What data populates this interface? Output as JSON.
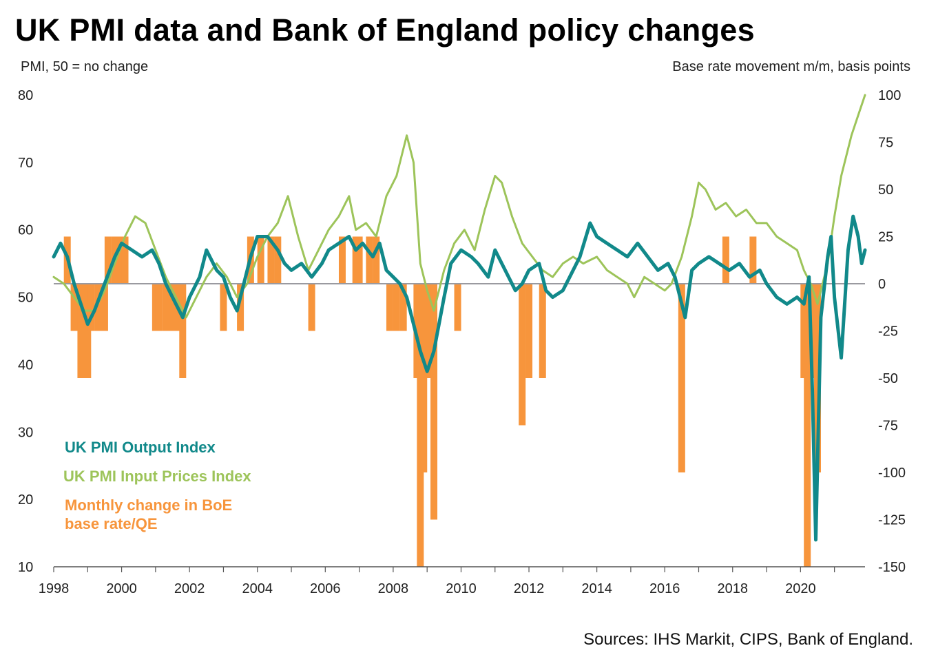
{
  "title": "UK PMI data and Bank of England policy changes",
  "source": "Sources: IHS Markit, CIPS, Bank of England.",
  "chart_data": {
    "type": "line",
    "title": "UK PMI data and Bank of England policy changes",
    "y_left_label": "PMI, 50 = no change",
    "y_right_label": "Base rate movement m/m, basis points",
    "y_left_range": [
      10,
      80
    ],
    "y_right_range": [
      -150,
      100
    ],
    "x_range": [
      1998,
      2021.9
    ],
    "y_left_ticks": [
      "80",
      "70",
      "60",
      "50",
      "40",
      "30",
      "20",
      "10"
    ],
    "y_right_ticks": [
      "100",
      "75",
      "50",
      "25",
      "0",
      "-25",
      "-50",
      "-75",
      "-100",
      "-125",
      "-150"
    ],
    "x_ticks": [
      "1998",
      "2000",
      "2002",
      "2004",
      "2006",
      "2008",
      "2010",
      "2012",
      "2014",
      "2016",
      "2018",
      "2020"
    ],
    "zero_line_right_axis": 0,
    "legend_placement": "bottom-left",
    "series": [
      {
        "name": "UK PMI Output Index",
        "axis": "left",
        "color": "#11898a",
        "points": [
          [
            1998.0,
            56
          ],
          [
            1998.2,
            58
          ],
          [
            1998.4,
            56
          ],
          [
            1998.6,
            52
          ],
          [
            1998.8,
            49
          ],
          [
            1999.0,
            46
          ],
          [
            1999.2,
            48
          ],
          [
            1999.5,
            52
          ],
          [
            1999.8,
            56
          ],
          [
            2000.0,
            58
          ],
          [
            2000.3,
            57
          ],
          [
            2000.6,
            56
          ],
          [
            2000.9,
            57
          ],
          [
            2001.1,
            55
          ],
          [
            2001.3,
            52
          ],
          [
            2001.6,
            49
          ],
          [
            2001.8,
            47
          ],
          [
            2002.0,
            50
          ],
          [
            2002.3,
            53
          ],
          [
            2002.5,
            57
          ],
          [
            2002.8,
            54
          ],
          [
            2003.0,
            53
          ],
          [
            2003.2,
            50
          ],
          [
            2003.4,
            48
          ],
          [
            2003.6,
            52
          ],
          [
            2003.8,
            56
          ],
          [
            2004.0,
            59
          ],
          [
            2004.3,
            59
          ],
          [
            2004.6,
            57
          ],
          [
            2004.8,
            55
          ],
          [
            2005.0,
            54
          ],
          [
            2005.3,
            55
          ],
          [
            2005.6,
            53
          ],
          [
            2005.9,
            55
          ],
          [
            2006.1,
            57
          ],
          [
            2006.4,
            58
          ],
          [
            2006.7,
            59
          ],
          [
            2006.9,
            57
          ],
          [
            2007.1,
            58
          ],
          [
            2007.4,
            56
          ],
          [
            2007.6,
            58
          ],
          [
            2007.8,
            54
          ],
          [
            2008.0,
            53
          ],
          [
            2008.2,
            52
          ],
          [
            2008.4,
            50
          ],
          [
            2008.6,
            46
          ],
          [
            2008.8,
            42
          ],
          [
            2009.0,
            39
          ],
          [
            2009.2,
            42
          ],
          [
            2009.5,
            50
          ],
          [
            2009.7,
            55
          ],
          [
            2010.0,
            57
          ],
          [
            2010.3,
            56
          ],
          [
            2010.5,
            55
          ],
          [
            2010.8,
            53
          ],
          [
            2011.0,
            57
          ],
          [
            2011.2,
            55
          ],
          [
            2011.4,
            53
          ],
          [
            2011.6,
            51
          ],
          [
            2011.8,
            52
          ],
          [
            2012.0,
            54
          ],
          [
            2012.3,
            55
          ],
          [
            2012.5,
            51
          ],
          [
            2012.7,
            50
          ],
          [
            2013.0,
            51
          ],
          [
            2013.2,
            53
          ],
          [
            2013.5,
            56
          ],
          [
            2013.8,
            61
          ],
          [
            2014.0,
            59
          ],
          [
            2014.3,
            58
          ],
          [
            2014.6,
            57
          ],
          [
            2014.9,
            56
          ],
          [
            2015.2,
            58
          ],
          [
            2015.5,
            56
          ],
          [
            2015.8,
            54
          ],
          [
            2016.1,
            55
          ],
          [
            2016.3,
            53
          ],
          [
            2016.6,
            47
          ],
          [
            2016.8,
            54
          ],
          [
            2017.0,
            55
          ],
          [
            2017.3,
            56
          ],
          [
            2017.6,
            55
          ],
          [
            2017.9,
            54
          ],
          [
            2018.2,
            55
          ],
          [
            2018.5,
            53
          ],
          [
            2018.8,
            54
          ],
          [
            2019.0,
            52
          ],
          [
            2019.3,
            50
          ],
          [
            2019.6,
            49
          ],
          [
            2019.9,
            50
          ],
          [
            2020.1,
            49
          ],
          [
            2020.25,
            53
          ],
          [
            2020.35,
            36
          ],
          [
            2020.45,
            14
          ],
          [
            2020.6,
            47
          ],
          [
            2020.8,
            56
          ],
          [
            2020.9,
            59
          ],
          [
            2021.0,
            50
          ],
          [
            2021.2,
            41
          ],
          [
            2021.4,
            57
          ],
          [
            2021.55,
            62
          ],
          [
            2021.7,
            59
          ],
          [
            2021.8,
            55
          ],
          [
            2021.9,
            57
          ]
        ]
      },
      {
        "name": "UK PMI Input Prices Index",
        "axis": "left",
        "color": "#9dc45a",
        "points": [
          [
            1998.0,
            53
          ],
          [
            1998.3,
            52
          ],
          [
            1998.6,
            50
          ],
          [
            1998.9,
            48
          ],
          [
            1999.2,
            48
          ],
          [
            1999.5,
            51
          ],
          [
            1999.8,
            55
          ],
          [
            2000.1,
            59
          ],
          [
            2000.4,
            62
          ],
          [
            2000.7,
            61
          ],
          [
            2001.0,
            57
          ],
          [
            2001.3,
            53
          ],
          [
            2001.6,
            50
          ],
          [
            2001.9,
            47
          ],
          [
            2002.2,
            50
          ],
          [
            2002.5,
            53
          ],
          [
            2002.8,
            55
          ],
          [
            2003.1,
            53
          ],
          [
            2003.4,
            50
          ],
          [
            2003.7,
            52
          ],
          [
            2004.0,
            56
          ],
          [
            2004.3,
            59
          ],
          [
            2004.6,
            61
          ],
          [
            2004.9,
            65
          ],
          [
            2005.2,
            59
          ],
          [
            2005.5,
            54
          ],
          [
            2005.8,
            57
          ],
          [
            2006.1,
            60
          ],
          [
            2006.4,
            62
          ],
          [
            2006.7,
            65
          ],
          [
            2006.9,
            60
          ],
          [
            2007.2,
            61
          ],
          [
            2007.5,
            59
          ],
          [
            2007.8,
            65
          ],
          [
            2008.1,
            68
          ],
          [
            2008.4,
            74
          ],
          [
            2008.6,
            70
          ],
          [
            2008.8,
            55
          ],
          [
            2009.0,
            51
          ],
          [
            2009.2,
            48
          ],
          [
            2009.5,
            54
          ],
          [
            2009.8,
            58
          ],
          [
            2010.1,
            60
          ],
          [
            2010.4,
            57
          ],
          [
            2010.7,
            63
          ],
          [
            2011.0,
            68
          ],
          [
            2011.2,
            67
          ],
          [
            2011.5,
            62
          ],
          [
            2011.8,
            58
          ],
          [
            2012.1,
            56
          ],
          [
            2012.4,
            54
          ],
          [
            2012.7,
            53
          ],
          [
            2013.0,
            55
          ],
          [
            2013.3,
            56
          ],
          [
            2013.6,
            55
          ],
          [
            2014.0,
            56
          ],
          [
            2014.3,
            54
          ],
          [
            2014.6,
            53
          ],
          [
            2014.9,
            52
          ],
          [
            2015.1,
            50
          ],
          [
            2015.4,
            53
          ],
          [
            2015.7,
            52
          ],
          [
            2016.0,
            51
          ],
          [
            2016.2,
            52
          ],
          [
            2016.5,
            56
          ],
          [
            2016.8,
            62
          ],
          [
            2017.0,
            67
          ],
          [
            2017.2,
            66
          ],
          [
            2017.5,
            63
          ],
          [
            2017.8,
            64
          ],
          [
            2018.1,
            62
          ],
          [
            2018.4,
            63
          ],
          [
            2018.7,
            61
          ],
          [
            2019.0,
            61
          ],
          [
            2019.3,
            59
          ],
          [
            2019.6,
            58
          ],
          [
            2019.9,
            57
          ],
          [
            2020.1,
            54
          ],
          [
            2020.3,
            52
          ],
          [
            2020.5,
            49
          ],
          [
            2020.8,
            55
          ],
          [
            2021.0,
            62
          ],
          [
            2021.2,
            68
          ],
          [
            2021.5,
            74
          ],
          [
            2021.7,
            77
          ],
          [
            2021.9,
            80
          ]
        ]
      },
      {
        "name": "Monthly change in BoE base rate/QE",
        "axis": "right",
        "type": "bar",
        "color": "#f7953c",
        "points": [
          [
            1998.4,
            25
          ],
          [
            1998.6,
            -25
          ],
          [
            1998.7,
            -25
          ],
          [
            1998.8,
            -50
          ],
          [
            1998.9,
            -50
          ],
          [
            1999.0,
            -50
          ],
          [
            1999.1,
            -25
          ],
          [
            1999.3,
            -25
          ],
          [
            1999.5,
            -25
          ],
          [
            1999.6,
            25
          ],
          [
            1999.8,
            25
          ],
          [
            1999.9,
            25
          ],
          [
            2000.0,
            25
          ],
          [
            2000.1,
            25
          ],
          [
            2001.0,
            -25
          ],
          [
            2001.1,
            -25
          ],
          [
            2001.3,
            -25
          ],
          [
            2001.5,
            -25
          ],
          [
            2001.7,
            -25
          ],
          [
            2001.8,
            -50
          ],
          [
            2003.0,
            -25
          ],
          [
            2003.5,
            -25
          ],
          [
            2003.8,
            25
          ],
          [
            2004.1,
            25
          ],
          [
            2004.4,
            25
          ],
          [
            2004.6,
            25
          ],
          [
            2005.6,
            -25
          ],
          [
            2006.5,
            25
          ],
          [
            2006.9,
            25
          ],
          [
            2007.0,
            25
          ],
          [
            2007.3,
            25
          ],
          [
            2007.5,
            25
          ],
          [
            2007.9,
            -25
          ],
          [
            2008.1,
            -25
          ],
          [
            2008.3,
            -25
          ],
          [
            2008.7,
            -50
          ],
          [
            2008.8,
            -150
          ],
          [
            2008.9,
            -100
          ],
          [
            2009.0,
            -50
          ],
          [
            2009.1,
            -50
          ],
          [
            2009.2,
            -125
          ],
          [
            2009.9,
            -25
          ],
          [
            2011.8,
            -75
          ],
          [
            2012.0,
            -50
          ],
          [
            2012.4,
            -50
          ],
          [
            2016.5,
            -100
          ],
          [
            2017.8,
            25
          ],
          [
            2018.6,
            25
          ],
          [
            2020.1,
            -50
          ],
          [
            2020.2,
            -150
          ],
          [
            2020.3,
            -50
          ],
          [
            2020.5,
            -100
          ]
        ]
      }
    ]
  },
  "legend": {
    "output": "UK PMI Output Index",
    "input_line1": "UK PMI Input Prices Index",
    "boe_line1": "Monthly change in BoE",
    "boe_line2": "base rate/QE"
  }
}
